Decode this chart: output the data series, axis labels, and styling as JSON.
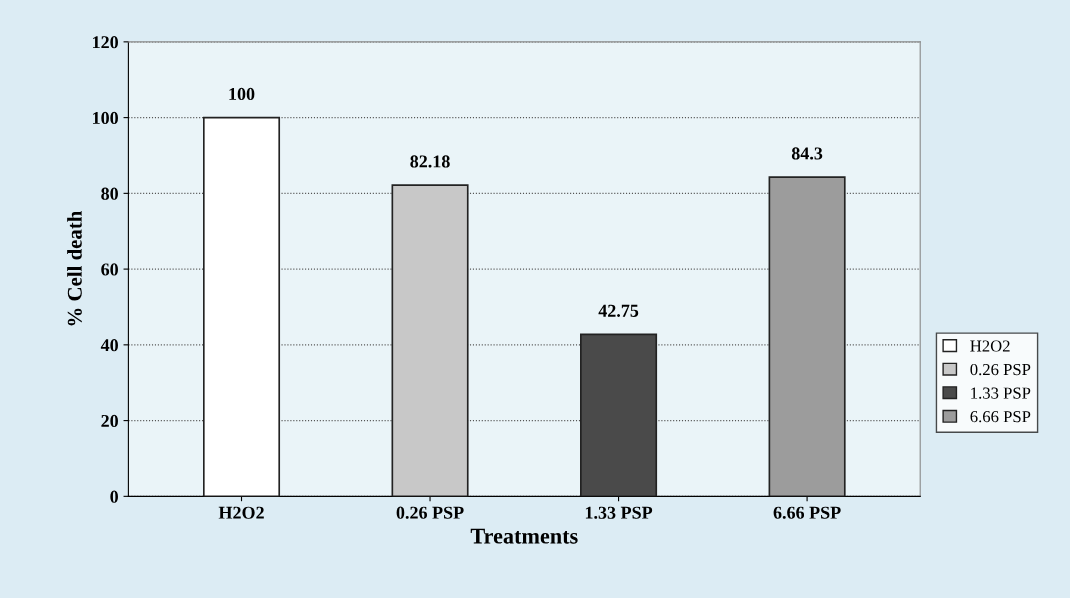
{
  "chart_data": {
    "type": "bar",
    "xlabel": "Treatments",
    "ylabel": "% Cell death",
    "categories": [
      "H2O2",
      "0.26 PSP",
      "1.33 PSP",
      "6.66 PSP"
    ],
    "series": [
      {
        "name": "H2O2",
        "color": "#ffffff",
        "values": [
          100,
          null,
          null,
          null
        ]
      },
      {
        "name": "0.26 PSP",
        "color": "#c8c8c8",
        "values": [
          null,
          82.18,
          null,
          null
        ]
      },
      {
        "name": "1.33 PSP",
        "color": "#4a4a4a",
        "values": [
          null,
          null,
          42.75,
          null
        ]
      },
      {
        "name": "6.66 PSP",
        "color": "#9c9c9c",
        "values": [
          null,
          null,
          null,
          84.3
        ]
      }
    ],
    "ylim": [
      0,
      120
    ],
    "yticks": [
      0,
      20,
      40,
      60,
      80,
      100,
      120
    ],
    "grid": "y",
    "legend": "right",
    "data_labels": true
  }
}
